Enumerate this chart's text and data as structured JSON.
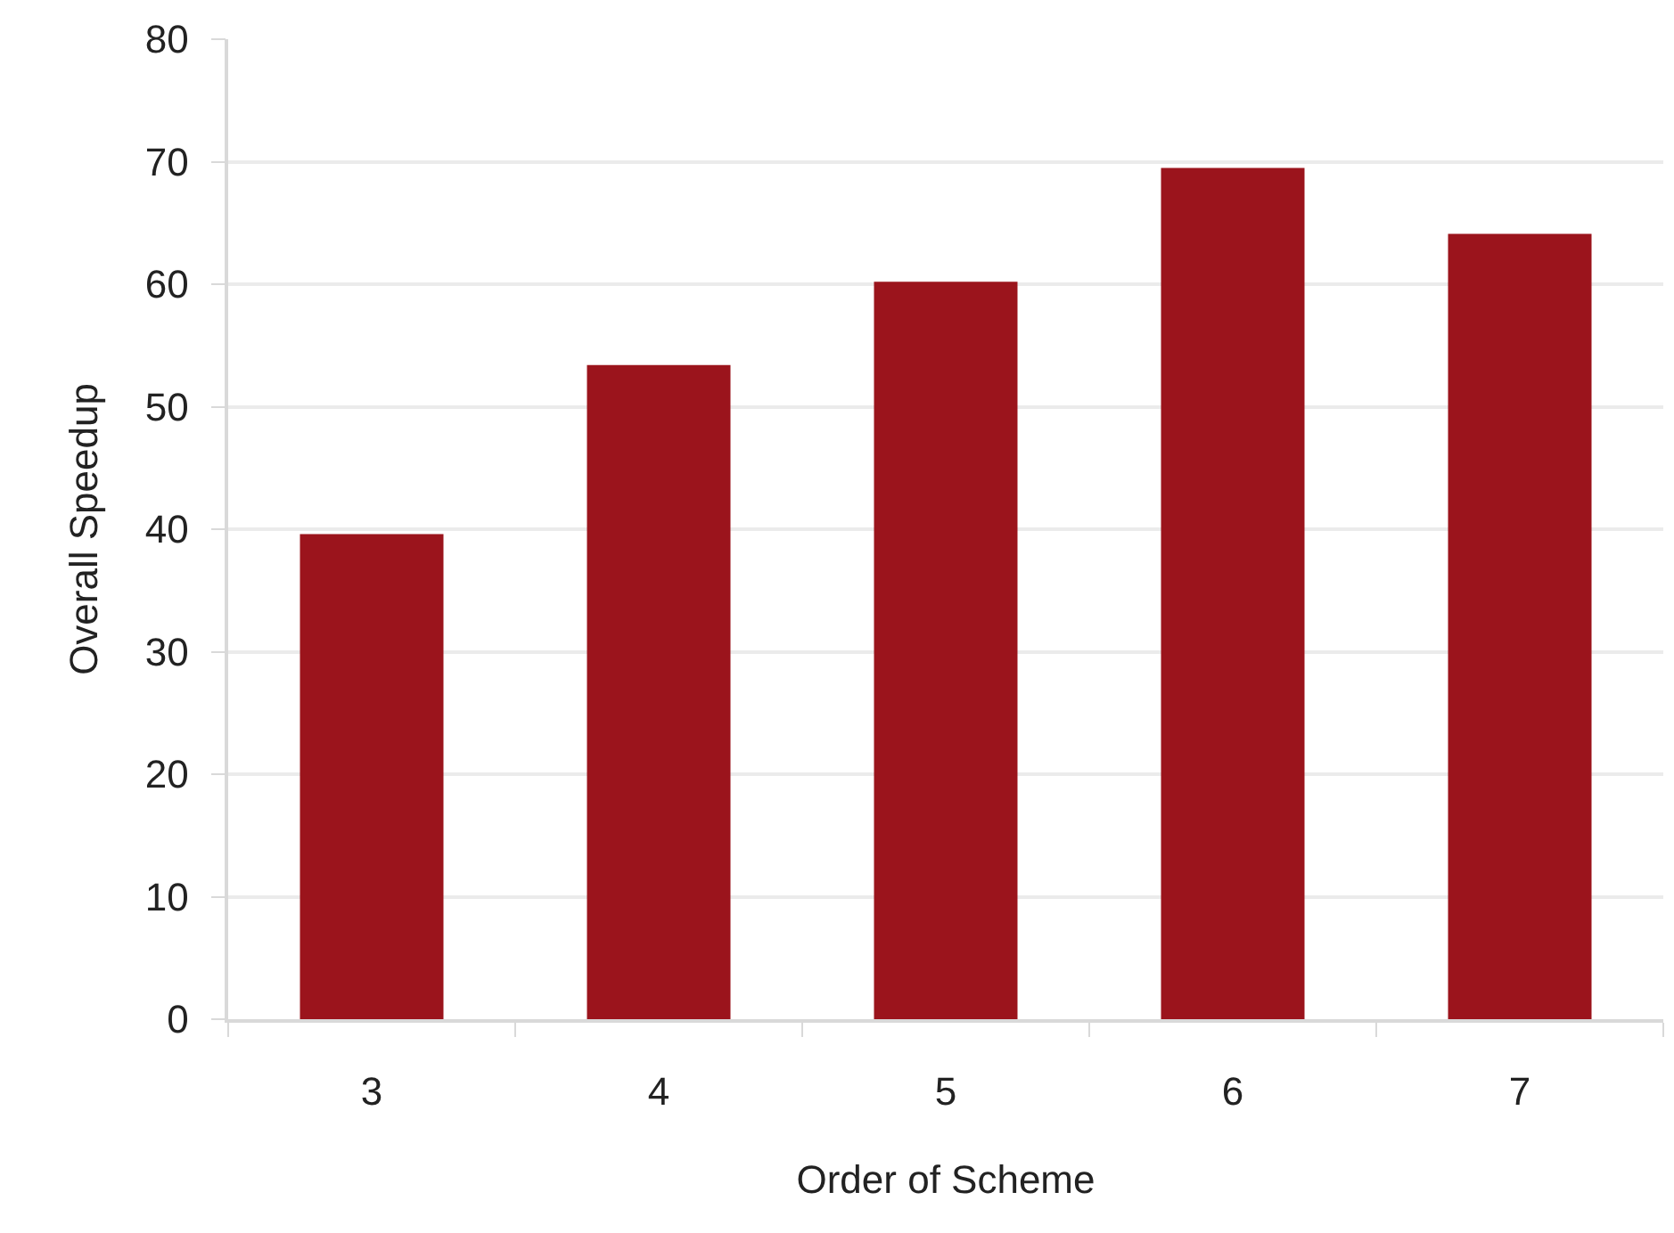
{
  "chart_data": {
    "type": "bar",
    "xlabel": "Order of Scheme",
    "ylabel": "Overall Speedup",
    "categories": [
      "3",
      "4",
      "5",
      "6",
      "7"
    ],
    "values": [
      39.6,
      53.4,
      60.2,
      69.5,
      64.1
    ],
    "color": "#9b141c",
    "ylim": [
      0,
      80
    ],
    "yticks": [
      0,
      10,
      20,
      30,
      40,
      50,
      60,
      70,
      80
    ],
    "grid": "y"
  }
}
